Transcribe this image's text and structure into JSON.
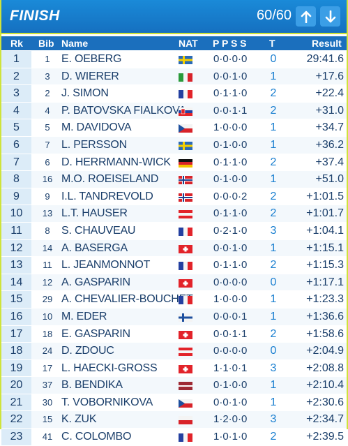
{
  "header": {
    "title": "FINISH",
    "count": "60/60",
    "up_icon": "arrow-up-icon",
    "down_icon": "arrow-down-icon"
  },
  "columns": {
    "rk": "Rk",
    "bib": "Bib",
    "name": "Name",
    "nat": "NAT",
    "ppss": "P P S S",
    "t": "T",
    "result": "Result"
  },
  "rows": [
    {
      "rk": "1",
      "bib": "1",
      "name": "E. OEBERG",
      "flag": "SWE",
      "pen": "0·0·0·0",
      "t": "0",
      "result": "29:41.6"
    },
    {
      "rk": "2",
      "bib": "3",
      "name": "D. WIERER",
      "flag": "ITA",
      "pen": "0·0·1·0",
      "t": "1",
      "result": "+17.6"
    },
    {
      "rk": "3",
      "bib": "2",
      "name": "J. SIMON",
      "flag": "FRA",
      "pen": "0·1·1·0",
      "t": "2",
      "result": "+22.4"
    },
    {
      "rk": "4",
      "bib": "4",
      "name": "P. BATOVSKA FIALKOVA",
      "flag": "SVK",
      "pen": "0·0·1·1",
      "t": "2",
      "result": "+31.0"
    },
    {
      "rk": "5",
      "bib": "5",
      "name": "M. DAVIDOVA",
      "flag": "CZE",
      "pen": "1·0·0·0",
      "t": "1",
      "result": "+34.7"
    },
    {
      "rk": "6",
      "bib": "7",
      "name": "L. PERSSON",
      "flag": "SWE",
      "pen": "0·1·0·0",
      "t": "1",
      "result": "+36.2"
    },
    {
      "rk": "7",
      "bib": "6",
      "name": "D. HERRMANN-WICK",
      "flag": "GER",
      "pen": "0·1·1·0",
      "t": "2",
      "result": "+37.4"
    },
    {
      "rk": "8",
      "bib": "16",
      "name": "M.O. ROEISELAND",
      "flag": "NOR",
      "pen": "0·1·0·0",
      "t": "1",
      "result": "+51.0"
    },
    {
      "rk": "9",
      "bib": "9",
      "name": "I.L. TANDREVOLD",
      "flag": "NOR",
      "pen": "0·0·0·2",
      "t": "2",
      "result": "+1:01.5"
    },
    {
      "rk": "10",
      "bib": "13",
      "name": "L.T. HAUSER",
      "flag": "AUT",
      "pen": "0·1·1·0",
      "t": "2",
      "result": "+1:01.7"
    },
    {
      "rk": "11",
      "bib": "8",
      "name": "S. CHAUVEAU",
      "flag": "FRA",
      "pen": "0·2·1·0",
      "t": "3",
      "result": "+1:04.1"
    },
    {
      "rk": "12",
      "bib": "14",
      "name": "A. BASERGA",
      "flag": "SUI",
      "pen": "0·0·1·0",
      "t": "1",
      "result": "+1:15.1"
    },
    {
      "rk": "13",
      "bib": "11",
      "name": "L. JEANMONNOT",
      "flag": "FRA",
      "pen": "0·1·1·0",
      "t": "2",
      "result": "+1:15.3"
    },
    {
      "rk": "14",
      "bib": "12",
      "name": "A. GASPARIN",
      "flag": "SUI",
      "pen": "0·0·0·0",
      "t": "0",
      "result": "+1:17.1"
    },
    {
      "rk": "15",
      "bib": "29",
      "name": "A. CHEVALIER-BOUCHET",
      "flag": "FRA",
      "pen": "1·0·0·0",
      "t": "1",
      "result": "+1:23.3"
    },
    {
      "rk": "16",
      "bib": "10",
      "name": "M. EDER",
      "flag": "FIN",
      "pen": "0·0·0·1",
      "t": "1",
      "result": "+1:36.6"
    },
    {
      "rk": "17",
      "bib": "18",
      "name": "E. GASPARIN",
      "flag": "SUI",
      "pen": "0·0·1·1",
      "t": "2",
      "result": "+1:58.6"
    },
    {
      "rk": "18",
      "bib": "24",
      "name": "D. ZDOUC",
      "flag": "AUT",
      "pen": "0·0·0·0",
      "t": "0",
      "result": "+2:04.9"
    },
    {
      "rk": "19",
      "bib": "17",
      "name": "L. HAECKI-GROSS",
      "flag": "SUI",
      "pen": "1·1·0·1",
      "t": "3",
      "result": "+2:08.8"
    },
    {
      "rk": "20",
      "bib": "37",
      "name": "B. BENDIKA",
      "flag": "LAT",
      "pen": "0·1·0·0",
      "t": "1",
      "result": "+2:10.4"
    },
    {
      "rk": "21",
      "bib": "30",
      "name": "T. VOBORNIKOVA",
      "flag": "CZE",
      "pen": "0·0·1·0",
      "t": "1",
      "result": "+2:30.6"
    },
    {
      "rk": "22",
      "bib": "15",
      "name": "K. ZUK",
      "flag": "POL",
      "pen": "1·2·0·0",
      "t": "3",
      "result": "+2:34.7"
    },
    {
      "rk": "23",
      "bib": "41",
      "name": "C. COLOMBO",
      "flag": "FRA",
      "pen": "1·0·1·0",
      "t": "2",
      "result": "+2:39.5"
    }
  ]
}
